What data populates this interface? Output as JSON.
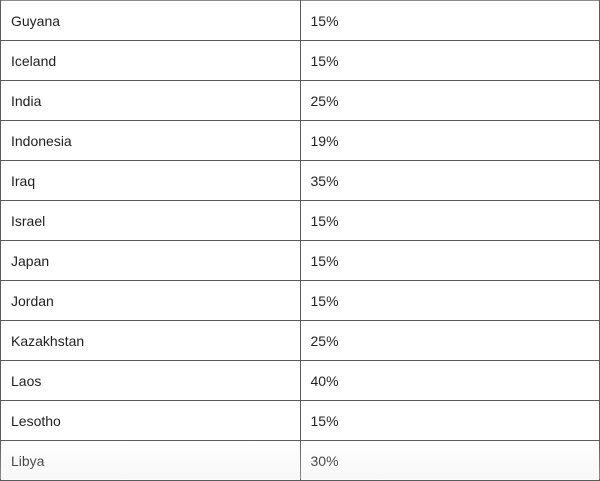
{
  "table": {
    "rows": [
      {
        "country": "Guyana",
        "rate": "15%"
      },
      {
        "country": "Iceland",
        "rate": "15%"
      },
      {
        "country": "India",
        "rate": "25%"
      },
      {
        "country": "Indonesia",
        "rate": "19%"
      },
      {
        "country": "Iraq",
        "rate": "35%"
      },
      {
        "country": "Israel",
        "rate": "15%"
      },
      {
        "country": "Japan",
        "rate": "15%"
      },
      {
        "country": "Jordan",
        "rate": "15%"
      },
      {
        "country": "Kazakhstan",
        "rate": "25%"
      },
      {
        "country": "Laos",
        "rate": "40%"
      },
      {
        "country": "Lesotho",
        "rate": "15%"
      },
      {
        "country": "Libya",
        "rate": "30%"
      }
    ]
  }
}
